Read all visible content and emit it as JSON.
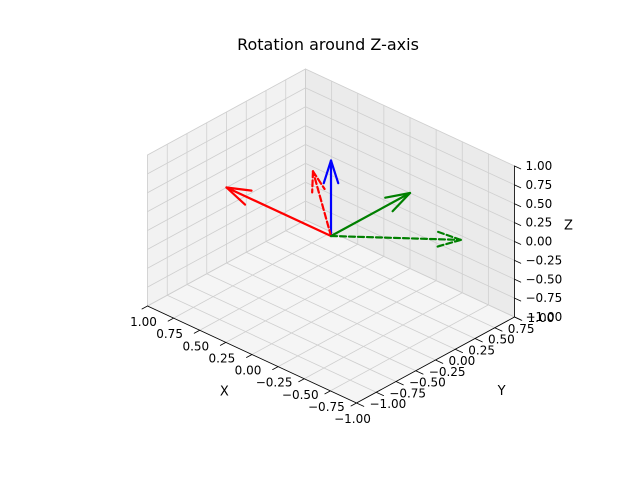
{
  "chart_data": {
    "type": "3d-vector",
    "title": "Rotation around Z-axis",
    "xlabel": "X",
    "ylabel": "Y",
    "zlabel": "Z",
    "xlim": [
      -1.0,
      1.0
    ],
    "ylim": [
      -1.0,
      1.0
    ],
    "zlim": [
      -1.0,
      1.0
    ],
    "x_ticks": [
      "−1.00",
      "−0.75",
      "−0.50",
      "−0.25",
      "0.00",
      "0.25",
      "0.50",
      "0.75",
      "1.00"
    ],
    "y_ticks": [
      "−1.00",
      "−0.75",
      "−0.50",
      "−0.25",
      "0.00",
      "0.25",
      "0.50",
      "0.75",
      "1.00"
    ],
    "z_ticks": [
      "−1.00",
      "−0.75",
      "−0.50",
      "−0.25",
      "0.00",
      "0.25",
      "0.50",
      "0.75",
      "1.00"
    ],
    "grid": true,
    "origin": [
      0,
      0,
      0
    ],
    "vectors": [
      {
        "style": "solid",
        "color": "#ff0000",
        "end": [
          1,
          0,
          0
        ]
      },
      {
        "style": "solid",
        "color": "#008000",
        "end": [
          0,
          1,
          0
        ]
      },
      {
        "style": "solid",
        "color": "#0000ff",
        "end": [
          0,
          0,
          1
        ]
      },
      {
        "style": "dashed",
        "color": "#ff0000",
        "end": [
          0.707,
          0.707,
          0
        ]
      },
      {
        "style": "dashed",
        "color": "#008000",
        "end": [
          -0.707,
          0.707,
          0
        ]
      }
    ]
  }
}
